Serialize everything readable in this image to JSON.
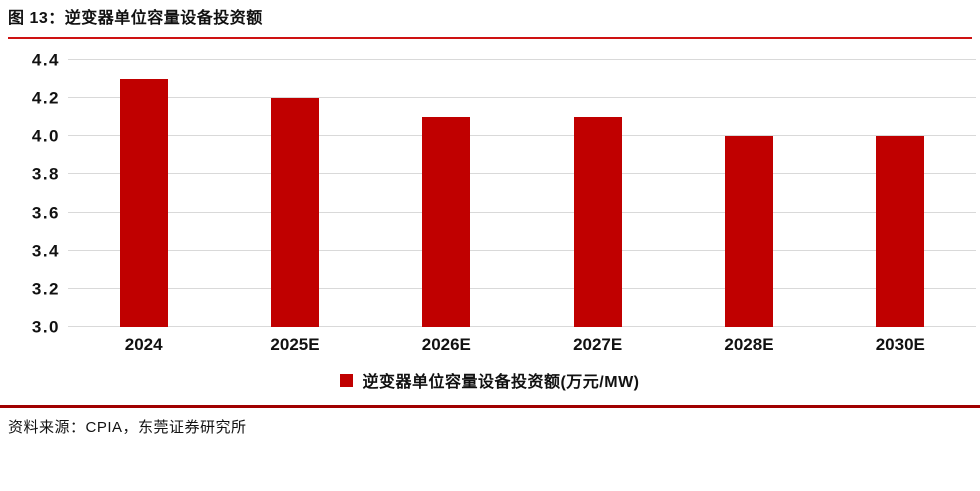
{
  "figure": {
    "title": "图 13：逆变器单位容量设备投资额",
    "source": "资料来源：CPIA，东莞证券研究所"
  },
  "colors": {
    "bar": "#C00000",
    "title_rule": "#CE1212",
    "bottom_rule": "#A00000",
    "gridline": "#D9D9D9",
    "text": "#111111"
  },
  "chart_data": {
    "type": "bar",
    "title": "图 13：逆变器单位容量设备投资额",
    "categories": [
      "2024",
      "2025E",
      "2026E",
      "2027E",
      "2028E",
      "2030E"
    ],
    "series": [
      {
        "name": "逆变器单位容量设备投资额(万元/MW)",
        "values": [
          4.3,
          4.2,
          4.1,
          4.1,
          4.0,
          4.0
        ]
      }
    ],
    "xlabel": "",
    "ylabel": "",
    "ylim": [
      3.0,
      4.4
    ],
    "yticks": [
      3.0,
      3.2,
      3.4,
      3.6,
      3.8,
      4.0,
      4.2,
      4.4
    ],
    "ytick_labels": [
      "3.0",
      "3.2",
      "3.4",
      "3.6",
      "3.8",
      "4.0",
      "4.2",
      "4.4"
    ],
    "grid": true,
    "legend_position": "bottom"
  }
}
